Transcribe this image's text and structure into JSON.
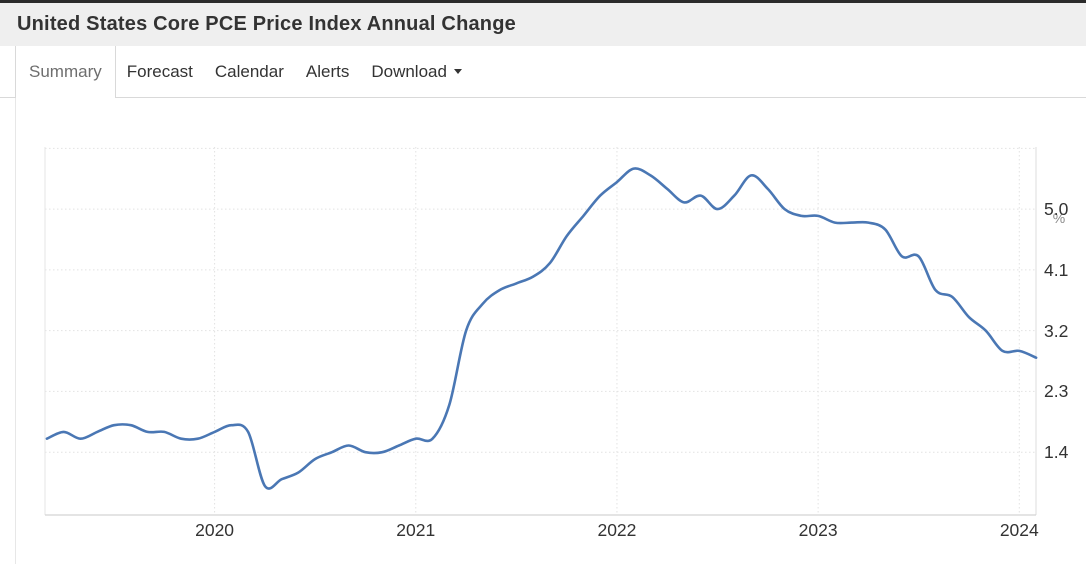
{
  "header": {
    "title": "United States Core PCE Price Index Annual Change"
  },
  "tabs": [
    {
      "label": "Summary",
      "active": true
    },
    {
      "label": "Forecast",
      "active": false
    },
    {
      "label": "Calendar",
      "active": false
    },
    {
      "label": "Alerts",
      "active": false
    },
    {
      "label": "Download",
      "active": false,
      "has_dropdown": true
    }
  ],
  "chart_data": {
    "type": "line",
    "title": "United States Core PCE Price Index Annual Change",
    "unit": "%",
    "line_color": "#4a77b4",
    "grid": "dotted",
    "legend_position": "none",
    "x": [
      "2019-03",
      "2019-04",
      "2019-05",
      "2019-06",
      "2019-07",
      "2019-08",
      "2019-09",
      "2019-10",
      "2019-11",
      "2019-12",
      "2020-01",
      "2020-02",
      "2020-03",
      "2020-04",
      "2020-05",
      "2020-06",
      "2020-07",
      "2020-08",
      "2020-09",
      "2020-10",
      "2020-11",
      "2020-12",
      "2021-01",
      "2021-02",
      "2021-03",
      "2021-04",
      "2021-05",
      "2021-06",
      "2021-07",
      "2021-08",
      "2021-09",
      "2021-10",
      "2021-11",
      "2021-12",
      "2022-01",
      "2022-02",
      "2022-03",
      "2022-04",
      "2022-05",
      "2022-06",
      "2022-07",
      "2022-08",
      "2022-09",
      "2022-10",
      "2022-11",
      "2022-12",
      "2023-01",
      "2023-02",
      "2023-03",
      "2023-04",
      "2023-05",
      "2023-06",
      "2023-07",
      "2023-08",
      "2023-09",
      "2023-10",
      "2023-11",
      "2023-12",
      "2024-01",
      "2024-02"
    ],
    "values": [
      1.6,
      1.7,
      1.6,
      1.7,
      1.8,
      1.8,
      1.7,
      1.7,
      1.6,
      1.6,
      1.7,
      1.8,
      1.7,
      0.9,
      1.0,
      1.1,
      1.3,
      1.4,
      1.5,
      1.4,
      1.4,
      1.5,
      1.6,
      1.6,
      2.1,
      3.2,
      3.6,
      3.8,
      3.9,
      4.0,
      4.2,
      4.6,
      4.9,
      5.2,
      5.4,
      5.6,
      5.5,
      5.3,
      5.1,
      5.2,
      5.0,
      5.2,
      5.5,
      5.3,
      5.0,
      4.9,
      4.9,
      4.8,
      4.8,
      4.8,
      4.7,
      4.3,
      4.3,
      3.8,
      3.7,
      3.4,
      3.2,
      2.9,
      2.9,
      2.8
    ],
    "x_ticks": [
      {
        "label": "2020",
        "value": 2020
      },
      {
        "label": "2021",
        "value": 2021
      },
      {
        "label": "2022",
        "value": 2022
      },
      {
        "label": "2023",
        "value": 2023
      },
      {
        "label": "2024",
        "value": 2024
      }
    ],
    "y_ticks": [
      {
        "label": "5.0",
        "value": 5.0
      },
      {
        "label": "4.1",
        "value": 4.1
      },
      {
        "label": "3.2",
        "value": 3.2
      },
      {
        "label": "2.3",
        "value": 2.3
      },
      {
        "label": "1.4",
        "value": 1.4
      }
    ],
    "y_gridlines": [
      1.4,
      2.3,
      3.2,
      4.1,
      5.0,
      5.9
    ],
    "ylim": [
      0.47,
      5.92
    ],
    "xlim": [
      2019.157,
      2024.083
    ]
  }
}
